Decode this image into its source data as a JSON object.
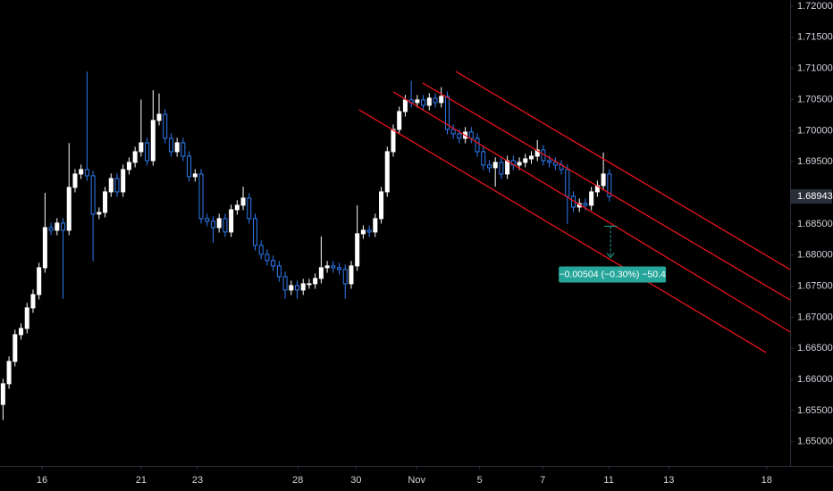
{
  "chart_data": {
    "type": "candlestick",
    "up_color": "#ffffff",
    "down_color": "#2f7bf0",
    "line_color": "#e8141c",
    "measure_color": "#26a69a",
    "xlim": [
      0,
      131.6
    ],
    "ylim": [
      1.6461,
      1.721
    ],
    "xticks": [
      {
        "value": 7.0,
        "label": "16"
      },
      {
        "value": 23.5,
        "label": "21"
      },
      {
        "value": 32.9,
        "label": "23"
      },
      {
        "value": 49.6,
        "label": "28"
      },
      {
        "value": 59.3,
        "label": "30"
      },
      {
        "value": 69.4,
        "label": "Nov"
      },
      {
        "value": 79.9,
        "label": "5"
      },
      {
        "value": 90.4,
        "label": "7"
      },
      {
        "value": 101.4,
        "label": "11"
      },
      {
        "value": 111.4,
        "label": "13"
      },
      {
        "value": 127.7,
        "label": "18"
      }
    ],
    "yticks": [
      {
        "value": 1.65,
        "label": "1.65000"
      },
      {
        "value": 1.655,
        "label": "1.65500"
      },
      {
        "value": 1.66,
        "label": "1.66000"
      },
      {
        "value": 1.665,
        "label": "1.66500"
      },
      {
        "value": 1.67,
        "label": "1.67000"
      },
      {
        "value": 1.675,
        "label": "1.67500"
      },
      {
        "value": 1.68,
        "label": "1.68000"
      },
      {
        "value": 1.685,
        "label": "1.68500"
      },
      {
        "value": 1.695,
        "label": "1.69500"
      },
      {
        "value": 1.7,
        "label": "1.70000"
      },
      {
        "value": 1.705,
        "label": "1.70500"
      },
      {
        "value": 1.71,
        "label": "1.71000"
      },
      {
        "value": 1.715,
        "label": "1.71500"
      },
      {
        "value": 1.72,
        "label": "1.72000"
      }
    ],
    "last_price": 1.68943,
    "x": [
      0.5,
      1.5,
      2.5,
      3.5,
      4.5,
      5.5,
      6.5,
      7.5,
      8.5,
      9.5,
      10.5,
      11.5,
      12.5,
      13.5,
      14.5,
      15.5,
      16.5,
      17.5,
      18.5,
      19.5,
      20.5,
      21.5,
      22.5,
      23.5,
      24.5,
      25.5,
      26.5,
      27.5,
      28.5,
      29.5,
      30.5,
      31.5,
      32.5,
      33.5,
      34.5,
      35.5,
      36.5,
      37.5,
      38.5,
      39.5,
      40.5,
      41.5,
      42.5,
      43.5,
      44.5,
      45.5,
      46.5,
      47.5,
      48.5,
      49.5,
      50.5,
      51.5,
      52.5,
      53.5,
      54.5,
      55.5,
      56.5,
      57.5,
      58.5,
      59.5,
      60.5,
      61.5,
      62.5,
      63.5,
      64.5,
      65.5,
      66.5,
      67.5,
      68.5,
      69.5,
      70.5,
      71.5,
      72.5,
      73.5,
      74.5,
      75.5,
      76.5,
      77.5,
      78.5,
      79.5,
      80.5,
      81.5,
      82.5,
      83.5,
      84.5,
      85.5,
      86.5,
      87.5,
      88.5,
      89.5,
      90.5,
      91.5,
      92.5,
      93.5,
      94.5,
      95.5,
      96.5,
      97.5,
      98.5,
      99.5,
      100.5,
      101.5
    ],
    "open": [
      1.656,
      1.65932,
      1.66291,
      1.66721,
      1.66821,
      1.67151,
      1.67366,
      1.67797,
      1.68442,
      1.68399,
      1.68514,
      1.68399,
      1.69088,
      1.69303,
      1.69375,
      1.69274,
      1.68658,
      1.68686,
      1.69016,
      1.69231,
      1.69016,
      1.69375,
      1.6949,
      1.69662,
      1.69805,
      1.69518,
      1.70164,
      1.70264,
      1.69877,
      1.69662,
      1.69805,
      1.6959,
      1.6926,
      1.69303,
      1.68586,
      1.68543,
      1.68442,
      1.68586,
      1.68371,
      1.68729,
      1.68801,
      1.68916,
      1.68586,
      1.68155,
      1.68012,
      1.67912,
      1.67826,
      1.67653,
      1.67438,
      1.6751,
      1.67438,
      1.67539,
      1.67539,
      1.67625,
      1.67797,
      1.67826,
      1.67797,
      1.67768,
      1.67539,
      1.67826,
      1.68342,
      1.68399,
      1.68371,
      1.68586,
      1.69016,
      1.69662,
      1.7002,
      1.70307,
      1.70494,
      1.70451,
      1.70494,
      1.70408,
      1.70522,
      1.70451,
      1.70551,
      1.7002,
      1.69949,
      1.69877,
      1.69977,
      1.69877,
      1.69662,
      1.69447,
      1.69404,
      1.6949,
      1.69303,
      1.69518,
      1.69447,
      1.6949,
      1.69547,
      1.6959,
      1.6969,
      1.69518,
      1.6949,
      1.69447,
      1.69375,
      1.68944,
      1.68772,
      1.6883,
      1.68801,
      1.69016,
      1.69117,
      1.69303
    ],
    "high": [
      1.66012,
      1.66371,
      1.66801,
      1.66901,
      1.67231,
      1.67446,
      1.67877,
      1.69,
      1.68522,
      1.68594,
      1.68594,
      1.698,
      1.69383,
      1.69455,
      1.7095,
      1.69354,
      1.68766,
      1.69096,
      1.69311,
      1.69311,
      1.69455,
      1.6957,
      1.69742,
      1.705,
      1.69885,
      1.7065,
      1.706,
      1.70344,
      1.69957,
      1.69885,
      1.69885,
      1.6967,
      1.69383,
      1.69383,
      1.68666,
      1.68623,
      1.68666,
      1.68666,
      1.68809,
      1.68881,
      1.691,
      1.68996,
      1.68666,
      1.68235,
      1.68092,
      1.67992,
      1.67906,
      1.67733,
      1.6759,
      1.6759,
      1.67619,
      1.67619,
      1.67705,
      1.683,
      1.67906,
      1.67906,
      1.67877,
      1.67848,
      1.67906,
      1.688,
      1.68479,
      1.68479,
      1.68666,
      1.69096,
      1.69742,
      1.701,
      1.70387,
      1.70574,
      1.708,
      1.70574,
      1.70574,
      1.70602,
      1.70602,
      1.707,
      1.70631,
      1.701,
      1.70029,
      1.70057,
      1.70057,
      1.69957,
      1.69742,
      1.69527,
      1.6957,
      1.6957,
      1.69598,
      1.69598,
      1.6957,
      1.69627,
      1.6967,
      1.6985,
      1.6977,
      1.69598,
      1.6957,
      1.69527,
      1.69455,
      1.69024,
      1.6891,
      1.6891,
      1.69096,
      1.69197,
      1.6965,
      1.69383
    ],
    "low": [
      1.6535,
      1.65852,
      1.66211,
      1.66641,
      1.66741,
      1.67071,
      1.67286,
      1.67717,
      1.68319,
      1.68319,
      1.673,
      1.68319,
      1.69008,
      1.69223,
      1.69194,
      1.679,
      1.68578,
      1.68606,
      1.68936,
      1.68936,
      1.68936,
      1.69295,
      1.6941,
      1.69582,
      1.69438,
      1.69438,
      1.70084,
      1.69797,
      1.69582,
      1.69582,
      1.6951,
      1.6918,
      1.6918,
      1.68506,
      1.68463,
      1.682,
      1.68362,
      1.68291,
      1.68291,
      1.68649,
      1.68721,
      1.68506,
      1.68075,
      1.67932,
      1.67832,
      1.67746,
      1.67573,
      1.673,
      1.67358,
      1.673,
      1.67358,
      1.67459,
      1.67459,
      1.67545,
      1.67717,
      1.67717,
      1.67688,
      1.673,
      1.67459,
      1.67746,
      1.68262,
      1.68291,
      1.68291,
      1.68506,
      1.68936,
      1.69582,
      1.6994,
      1.70227,
      1.70371,
      1.70371,
      1.70328,
      1.70328,
      1.70371,
      1.70371,
      1.6994,
      1.69869,
      1.69797,
      1.69797,
      1.69797,
      1.69582,
      1.69367,
      1.69324,
      1.691,
      1.69223,
      1.69223,
      1.69367,
      1.69367,
      1.6941,
      1.69467,
      1.6951,
      1.69438,
      1.6941,
      1.69367,
      1.69295,
      1.685,
      1.68692,
      1.68692,
      1.68721,
      1.68721,
      1.68936,
      1.69037,
      1.68863
    ],
    "close": [
      1.65932,
      1.66291,
      1.66721,
      1.66821,
      1.67151,
      1.67366,
      1.67797,
      1.68442,
      1.68399,
      1.68514,
      1.68399,
      1.69088,
      1.69303,
      1.69375,
      1.69274,
      1.68658,
      1.68686,
      1.69016,
      1.69231,
      1.69016,
      1.69375,
      1.6949,
      1.69662,
      1.69805,
      1.69518,
      1.70164,
      1.70264,
      1.69877,
      1.69662,
      1.69805,
      1.6959,
      1.6926,
      1.69303,
      1.68586,
      1.68543,
      1.68442,
      1.68586,
      1.68371,
      1.68729,
      1.68801,
      1.68916,
      1.68586,
      1.68155,
      1.68012,
      1.67912,
      1.67826,
      1.67653,
      1.67438,
      1.6751,
      1.67438,
      1.67539,
      1.67539,
      1.67625,
      1.67797,
      1.67826,
      1.67797,
      1.67768,
      1.67539,
      1.67826,
      1.68342,
      1.68399,
      1.68371,
      1.68586,
      1.69016,
      1.69662,
      1.7002,
      1.70307,
      1.70494,
      1.70451,
      1.70494,
      1.70408,
      1.70522,
      1.70451,
      1.70551,
      1.7002,
      1.69949,
      1.69877,
      1.69977,
      1.69877,
      1.69662,
      1.69447,
      1.69404,
      1.6949,
      1.69303,
      1.69518,
      1.69447,
      1.6949,
      1.69547,
      1.6959,
      1.6969,
      1.69518,
      1.6949,
      1.69447,
      1.69375,
      1.68944,
      1.68772,
      1.6883,
      1.68801,
      1.69016,
      1.69117,
      1.69303,
      1.68943
    ],
    "trend_lines": [
      {
        "x": [
          75.9,
          131.6
        ],
        "y": [
          1.70953,
          1.67768
        ]
      },
      {
        "x": [
          70.4,
          131.6
        ],
        "y": [
          1.70766,
          1.6728
        ]
      },
      {
        "x": [
          65.5,
          131.6
        ],
        "y": [
          1.70623,
          1.66764
        ]
      },
      {
        "x": [
          59.8,
          127.6
        ],
        "y": [
          1.70336,
          1.66434
        ]
      }
    ],
    "measure": {
      "x": 101.7,
      "y": [
        1.68465,
        1.67961
      ],
      "label": "−0.00504 (−0.30%) −50.4"
    }
  }
}
